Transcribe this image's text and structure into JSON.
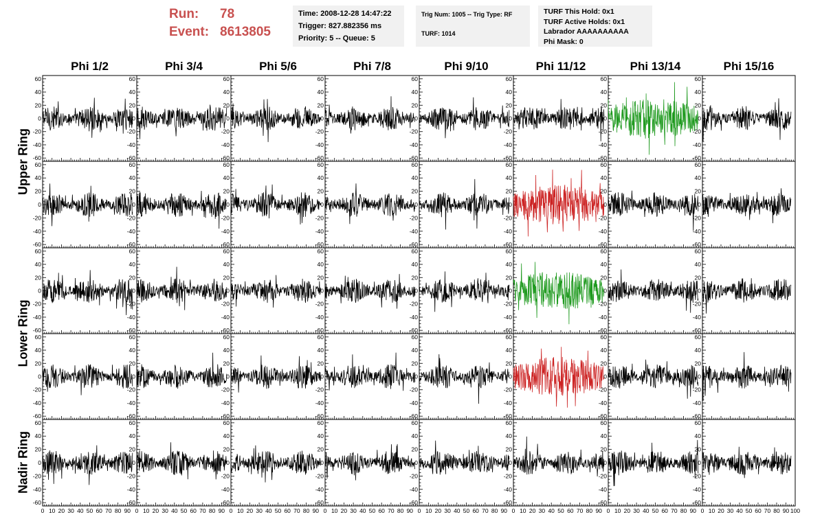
{
  "header": {
    "run_label": "Run:",
    "run_value": "78",
    "event_label": "Event:",
    "event_value": "8613805"
  },
  "info_time": {
    "time": "Time: 2008-12-28 14:47:22",
    "trigger": "Trigger: 827.882356 ms",
    "priority": "Priority: 5 -- Queue: 5"
  },
  "info_trig": {
    "trig": "Trig Num: 1005 -- Trig Type: RF",
    "turf": "TURF: 1014"
  },
  "info_turf": {
    "hold": "TURF This Hold: 0x1",
    "active": "TURF Active Holds: 0x1",
    "labrador": "Labrador AAAAAAAAAA",
    "phimask": "Phi Mask: 0"
  },
  "chart_data": {
    "type": "line",
    "title": "",
    "columns": [
      "Phi 1/2",
      "Phi 3/4",
      "Phi 5/6",
      "Phi 7/8",
      "Phi 9/10",
      "Phi 11/12",
      "Phi 13/14",
      "Phi 15/16"
    ],
    "row_groups": [
      {
        "label": "Upper Ring",
        "rows": [
          0,
          1
        ]
      },
      {
        "label": "Lower Ring",
        "rows": [
          2,
          3
        ]
      },
      {
        "label": "Nadir Ring",
        "rows": [
          4
        ]
      }
    ],
    "ylim": [
      -65,
      65
    ],
    "xlim": [
      0,
      100
    ],
    "yticks": [
      -60,
      -40,
      -20,
      0,
      20,
      40,
      60
    ],
    "xticks": [
      0,
      10,
      20,
      30,
      40,
      50,
      60,
      70,
      80,
      90,
      100
    ],
    "colors": {
      "default": "#000000",
      "green": "#1f9a1f",
      "red": "#cc2222"
    },
    "highlighted": [
      {
        "row": 0,
        "col": 6,
        "color": "green"
      },
      {
        "row": 1,
        "col": 5,
        "color": "red"
      },
      {
        "row": 2,
        "col": 5,
        "color": "green"
      },
      {
        "row": 3,
        "col": 5,
        "color": "red"
      }
    ]
  }
}
